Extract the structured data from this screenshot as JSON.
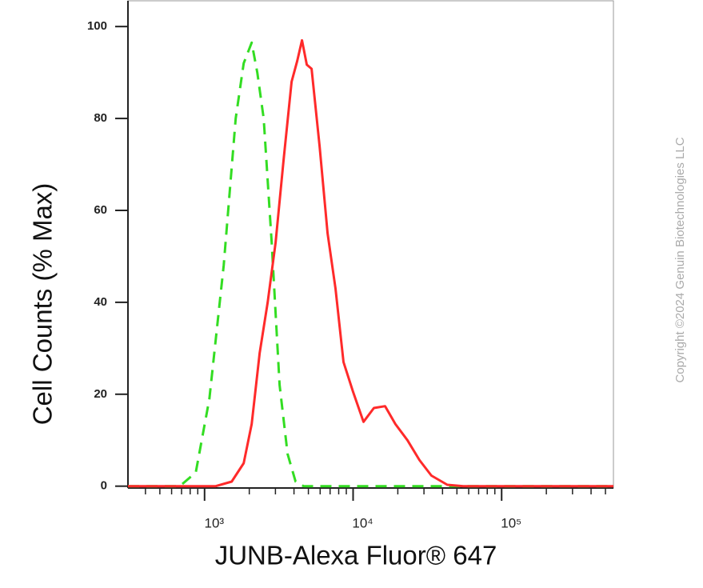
{
  "chart_data": {
    "type": "line",
    "x_title": "JUNB-Alexa Fluor® 647",
    "y_title": "Cell Counts (% Max)",
    "copyright": "Copyright ©2024 Genuin Biotechnologies LLC",
    "xlog": true,
    "xlim": [
      305,
      565700
    ],
    "ylim": [
      -0.4,
      105.6
    ],
    "yticks": [
      0,
      20,
      40,
      60,
      80,
      100
    ],
    "xticks": [
      {
        "value": 1000,
        "label": "10³"
      },
      {
        "value": 10000,
        "label": "10⁴"
      },
      {
        "value": 100000,
        "label": "10⁵"
      }
    ],
    "xminorticks": [
      400,
      500,
      600,
      700,
      800,
      900,
      2000,
      3000,
      4000,
      5000,
      6000,
      7000,
      8000,
      9000,
      20000,
      30000,
      40000,
      50000,
      60000,
      70000,
      80000,
      90000,
      200000,
      300000,
      400000,
      500000
    ],
    "series": [
      {
        "color": "#33dd22",
        "dashed": true,
        "x": [
          305,
          681,
          873,
          1077,
          1346,
          1621,
          1834,
          2076,
          2264,
          2500,
          2829,
          3201,
          3624,
          4102,
          4642,
          565700
        ],
        "values": [
          0,
          0,
          3,
          19,
          48,
          80,
          92,
          96.5,
          90,
          80,
          53,
          22,
          7,
          1,
          0,
          0
        ]
      },
      {
        "color": "#ff2a2a",
        "dashed": false,
        "x": [
          305,
          1189,
          1523,
          1834,
          2076,
          2350,
          2659,
          3009,
          3406,
          3855,
          4205,
          4529,
          4877,
          5253,
          5945,
          6730,
          7616,
          8620,
          10000,
          11746,
          13800,
          16410,
          19270,
          23210,
          27940,
          33640,
          43090,
          55200,
          565700
        ],
        "values": [
          0,
          0,
          1,
          5,
          13.5,
          29,
          40,
          53,
          71,
          88,
          92.5,
          97,
          91.7,
          90.8,
          74,
          55,
          43,
          27,
          20.5,
          14,
          17,
          17.4,
          13.5,
          10,
          5.7,
          2.3,
          0.3,
          0,
          0
        ]
      }
    ]
  }
}
